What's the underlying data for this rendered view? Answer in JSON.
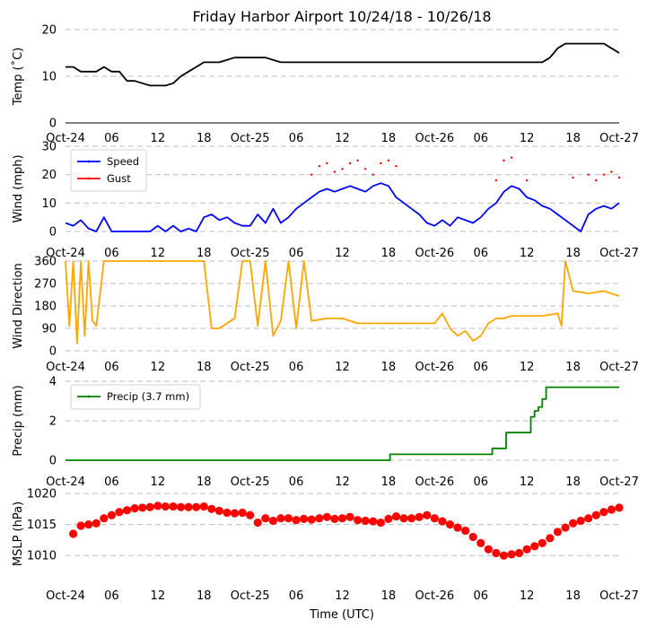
{
  "title": "Friday Harbor Airport 10/24/18 - 10/26/18",
  "xlabel": "Time (UTC)",
  "x_ticks": [
    "Oct-24",
    "06",
    "12",
    "18",
    "Oct-25",
    "06",
    "12",
    "18",
    "Oct-26",
    "06",
    "12",
    "18",
    "Oct-27"
  ],
  "chart_data": [
    {
      "type": "line",
      "ylabel": "Temp ($^\\circ$C)",
      "ylabel_display": "Temp (˚C)",
      "ylim": [
        0,
        20
      ],
      "yticks": [
        0,
        10,
        20
      ],
      "grid": true,
      "x_unit": "hours since Oct-24 00:00 UTC",
      "series": [
        {
          "name": "",
          "color": "#000000",
          "x": [
            0,
            1,
            2,
            4,
            5,
            6,
            7,
            8,
            9,
            10,
            11,
            12,
            13,
            14,
            15,
            16,
            17,
            18,
            20,
            22,
            24,
            26,
            28,
            30,
            32,
            34,
            36,
            38,
            40,
            42,
            44,
            46,
            48,
            50,
            52,
            54,
            56,
            58,
            60,
            62,
            63,
            64,
            65,
            66,
            68,
            70,
            71,
            72
          ],
          "y": [
            12,
            12,
            11,
            11,
            12,
            11,
            11,
            9,
            9,
            8.5,
            8,
            8,
            8,
            8.5,
            10,
            11,
            12,
            13,
            13,
            14,
            14,
            14,
            13,
            13,
            13,
            13,
            13,
            13,
            13,
            13,
            13,
            13,
            13,
            13,
            13,
            13,
            13,
            13,
            13,
            13,
            14,
            16,
            17,
            17,
            17,
            17,
            16,
            15
          ]
        }
      ]
    },
    {
      "type": "line",
      "ylabel": "Wind (mph)",
      "ylim": [
        0,
        30
      ],
      "yticks": [
        0,
        10,
        20,
        30
      ],
      "grid": true,
      "legend": "top-left",
      "series": [
        {
          "name": "Speed",
          "color": "#0000ff",
          "x": [
            0,
            1,
            2,
            3,
            4,
            5,
            6,
            7,
            8,
            9,
            10,
            11,
            12,
            13,
            14,
            15,
            16,
            17,
            18,
            19,
            20,
            21,
            22,
            23,
            24,
            25,
            26,
            27,
            28,
            29,
            30,
            31,
            32,
            33,
            34,
            35,
            36,
            37,
            38,
            39,
            40,
            41,
            42,
            43,
            44,
            45,
            46,
            47,
            48,
            49,
            50,
            51,
            52,
            53,
            54,
            55,
            56,
            57,
            58,
            59,
            60,
            61,
            62,
            63,
            64,
            65,
            66,
            67,
            68,
            69,
            70,
            71,
            72
          ],
          "y": [
            3,
            2,
            4,
            1,
            0,
            5,
            0,
            0,
            0,
            0,
            0,
            0,
            2,
            0,
            2,
            0,
            1,
            0,
            5,
            6,
            4,
            5,
            3,
            2,
            2,
            6,
            3,
            8,
            3,
            5,
            8,
            10,
            12,
            14,
            15,
            14,
            15,
            16,
            15,
            14,
            16,
            17,
            16,
            12,
            10,
            8,
            6,
            3,
            2,
            4,
            2,
            5,
            4,
            3,
            5,
            8,
            10,
            14,
            16,
            15,
            12,
            11,
            9,
            8,
            6,
            4,
            2,
            0,
            6,
            8,
            9,
            8,
            10
          ]
        },
        {
          "name": "Gust",
          "color": "#ff0000",
          "style": "dots",
          "x": [
            32,
            33,
            34,
            35,
            36,
            37,
            38,
            39,
            40,
            41,
            42,
            43,
            56,
            57,
            58,
            60,
            66,
            68,
            69,
            70,
            71,
            72
          ],
          "y": [
            20,
            23,
            24,
            21,
            22,
            24,
            25,
            22,
            20,
            24,
            25,
            23,
            18,
            25,
            26,
            18,
            19,
            20,
            18,
            20,
            21,
            19
          ]
        }
      ]
    },
    {
      "type": "line",
      "ylabel": "Wind Direction",
      "ylim": [
        0,
        360
      ],
      "yticks": [
        0,
        90,
        180,
        270,
        360
      ],
      "grid": true,
      "series": [
        {
          "name": "",
          "color": "#ffa500",
          "x": [
            0,
            0.5,
            1,
            1.5,
            2,
            2.5,
            3,
            3.5,
            4,
            5,
            6,
            8,
            10,
            12,
            14,
            16,
            18,
            19,
            20,
            21,
            22,
            23,
            24,
            25,
            26,
            27,
            28,
            29,
            30,
            31,
            32,
            34,
            36,
            38,
            40,
            42,
            44,
            46,
            48,
            49,
            50,
            51,
            52,
            53,
            54,
            55,
            56,
            57,
            58,
            60,
            62,
            64,
            64.5,
            65,
            66,
            68,
            70,
            72
          ],
          "y": [
            360,
            100,
            360,
            30,
            360,
            60,
            360,
            120,
            100,
            360,
            360,
            360,
            360,
            360,
            360,
            360,
            360,
            90,
            90,
            110,
            130,
            360,
            360,
            100,
            360,
            60,
            120,
            360,
            90,
            360,
            120,
            130,
            130,
            110,
            110,
            110,
            110,
            110,
            110,
            150,
            90,
            60,
            80,
            40,
            60,
            110,
            130,
            130,
            140,
            140,
            140,
            150,
            100,
            360,
            240,
            230,
            240,
            220
          ]
        }
      ]
    },
    {
      "type": "line",
      "ylabel": "Precip (mm)",
      "ylim": [
        0,
        4
      ],
      "yticks": [
        0,
        2,
        4
      ],
      "grid": true,
      "legend": "top-left",
      "series": [
        {
          "name": "Precip (3.7 mm)",
          "color": "#008000",
          "style": "step",
          "x": [
            0,
            42,
            42.2,
            55,
            55.5,
            57,
            57.3,
            60,
            60.5,
            61,
            61.5,
            62,
            62.5,
            72
          ],
          "y": [
            0,
            0,
            0.3,
            0.3,
            0.6,
            0.6,
            1.4,
            1.4,
            2.2,
            2.5,
            2.7,
            3.1,
            3.7,
            3.7
          ]
        }
      ]
    },
    {
      "type": "scatter",
      "ylabel": "MSLP (hPa)",
      "ylim": [
        1007,
        1020
      ],
      "yticks": [
        1010,
        1015,
        1020
      ],
      "grid": true,
      "series": [
        {
          "name": "",
          "color": "#ff0000",
          "x": [
            1,
            2,
            3,
            4,
            5,
            6,
            7,
            8,
            9,
            10,
            11,
            12,
            13,
            14,
            15,
            16,
            17,
            18,
            19,
            20,
            21,
            22,
            23,
            24,
            25,
            26,
            27,
            28,
            29,
            30,
            31,
            32,
            33,
            34,
            35,
            36,
            37,
            38,
            39,
            40,
            41,
            42,
            43,
            44,
            45,
            46,
            47,
            48,
            49,
            50,
            51,
            52,
            53,
            54,
            55,
            56,
            57,
            58,
            59,
            60,
            61,
            62,
            63,
            64,
            65,
            66,
            67,
            68,
            69,
            70,
            71,
            72
          ],
          "y": [
            1013.5,
            1014.8,
            1015,
            1015.2,
            1016,
            1016.5,
            1017,
            1017.3,
            1017.6,
            1017.7,
            1017.8,
            1018,
            1017.9,
            1017.9,
            1017.8,
            1017.8,
            1017.8,
            1017.9,
            1017.5,
            1017.2,
            1016.9,
            1016.8,
            1016.9,
            1016.5,
            1015.3,
            1016,
            1015.6,
            1016,
            1016,
            1015.7,
            1015.9,
            1015.8,
            1016,
            1016.2,
            1015.9,
            1016,
            1016.2,
            1015.7,
            1015.6,
            1015.5,
            1015.3,
            1015.9,
            1016.3,
            1016,
            1016,
            1016.2,
            1016.5,
            1016,
            1015.5,
            1015,
            1014.5,
            1014,
            1013,
            1012,
            1011,
            1010.4,
            1010,
            1010.2,
            1010.4,
            1011,
            1011.5,
            1012,
            1012.8,
            1013.8,
            1014.5,
            1015.2,
            1015.6,
            1016,
            1016.5,
            1017,
            1017.4,
            1017.7
          ]
        }
      ]
    }
  ]
}
